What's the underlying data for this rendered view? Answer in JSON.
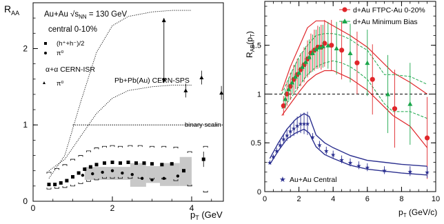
{
  "chart_data": [
    {
      "type": "scatter",
      "panel": "left",
      "ylabel": "R_AA",
      "xlabel": "p_T (GeV",
      "xlim": [
        0,
        4.8
      ],
      "ylim": [
        0,
        2.6
      ],
      "xticks": [
        0,
        2,
        4
      ],
      "yticks": [
        0,
        1,
        2
      ],
      "text": {
        "system": "Au+Au √s_NN = 130 GeV",
        "centrality": "central 0-10%",
        "hadrons": "(h⁺+h⁻)/2",
        "pi0": "π⁰",
        "isr_title": "α+α CERN-ISR",
        "isr_pi0": "π⁰",
        "sps": "Pb+Pb(Au) CERN-SPS",
        "binary": "binary scalin"
      },
      "reference_line": {
        "y": 1.0,
        "x_from": 1.0,
        "x_to": 4.8,
        "style": "dotted"
      },
      "series": [
        {
          "name": "(h⁺+h⁻)/2",
          "marker": "square",
          "x": [
            0.4,
            0.55,
            0.7,
            0.85,
            1.0,
            1.15,
            1.3,
            1.45,
            1.6,
            1.8,
            2.0,
            2.2,
            2.4,
            2.6,
            2.8,
            3.0,
            3.25,
            3.5,
            3.8,
            4.3
          ],
          "y": [
            0.22,
            0.22,
            0.24,
            0.27,
            0.32,
            0.37,
            0.42,
            0.45,
            0.48,
            0.5,
            0.51,
            0.5,
            0.51,
            0.5,
            0.5,
            0.49,
            0.48,
            0.49,
            0.4,
            0.55
          ]
        },
        {
          "name": "π⁰",
          "marker": "circle",
          "x": [
            1.0,
            1.25,
            1.5,
            1.75,
            2.0,
            2.25,
            2.5,
            2.75,
            3.0,
            3.3,
            3.65
          ],
          "y": [
            0.32,
            0.34,
            0.36,
            0.38,
            0.4,
            0.37,
            0.35,
            0.3,
            0.28,
            0.3,
            0.33
          ]
        },
        {
          "name": "α+α CERN-ISR π⁰",
          "marker": "triangle",
          "x": [
            3.85,
            4.25,
            4.75
          ],
          "y": [
            1.45,
            1.62,
            1.42
          ]
        }
      ],
      "curves": [
        {
          "role": "sps-upper",
          "style": "dotted",
          "x": [
            0.4,
            0.8,
            1.2,
            1.6,
            2.0,
            2.4,
            3.0,
            3.5,
            4.0
          ],
          "y": [
            0.3,
            0.6,
            1.3,
            1.95,
            2.3,
            2.42,
            2.48,
            2.5,
            2.5
          ]
        },
        {
          "role": "sps-lower",
          "style": "dotted",
          "x": [
            0.4,
            0.8,
            1.2,
            1.6,
            2.0,
            2.4,
            3.0,
            3.5,
            4.0
          ],
          "y": [
            0.4,
            0.55,
            0.85,
            1.15,
            1.35,
            1.45,
            1.5,
            1.52,
            1.52
          ]
        }
      ],
      "sps_arrow": {
        "x": 3.3,
        "y_top": 2.4,
        "y_bottom": 1.55
      },
      "syst_brackets": {
        "upper": {
          "x": [
            0.4,
            0.6,
            0.8,
            1.0,
            1.2,
            1.4,
            1.6,
            1.8,
            2.0,
            2.2,
            2.45,
            2.7,
            3.0,
            3.3,
            3.6,
            3.95,
            4.35
          ],
          "y": [
            0.38,
            0.43,
            0.48,
            0.55,
            0.6,
            0.66,
            0.7,
            0.72,
            0.73,
            0.72,
            0.73,
            0.73,
            0.72,
            0.72,
            0.71,
            0.65,
            0.72
          ]
        },
        "lower": {
          "x": [
            0.4,
            0.6,
            0.8,
            1.0,
            1.2,
            1.4,
            1.6,
            1.8,
            2.0,
            2.2,
            2.45,
            2.7,
            3.0,
            3.3,
            3.6,
            3.95,
            4.35
          ],
          "y": [
            0.16,
            0.17,
            0.18,
            0.2,
            0.23,
            0.26,
            0.28,
            0.3,
            0.3,
            0.3,
            0.3,
            0.3,
            0.29,
            0.29,
            0.27,
            0.2,
            0.12
          ]
        }
      },
      "gray_bands": [
        {
          "x0": 1.3,
          "x1": 2.45,
          "ylo": 0.28,
          "yhi": 0.45
        },
        {
          "x0": 2.45,
          "x1": 2.85,
          "ylo": 0.19,
          "yhi": 0.5
        },
        {
          "x0": 2.85,
          "x1": 3.2,
          "ylo": 0.24,
          "yhi": 0.46
        },
        {
          "x0": 3.2,
          "x1": 3.7,
          "ylo": 0.2,
          "yhi": 0.5
        },
        {
          "x0": 3.7,
          "x1": 4.0,
          "ylo": 0.2,
          "yhi": 0.58
        }
      ]
    },
    {
      "type": "scatter",
      "panel": "right",
      "ylabel": "R_AB(p_T)",
      "xlabel": "p_T (GeV/c)",
      "xlim": [
        0,
        10
      ],
      "ylim": [
        0,
        1.95
      ],
      "xticks": [
        0,
        2,
        4,
        6,
        8,
        10
      ],
      "yticks": [
        0,
        0.5,
        1,
        1.5
      ],
      "ytick_labels": [
        "0",
        "0.5",
        "1",
        "1.5"
      ],
      "reference_line": {
        "y": 1.0,
        "style": "dashed"
      },
      "colors": {
        "ftpc": "#e0262a",
        "minbias": "#1aa64a",
        "auau": "#2b2f8f"
      },
      "series": [
        {
          "name": "d+Au FTPC-Au 0-20%",
          "marker": "circle",
          "color": "#e0262a",
          "x": [
            1.1,
            1.3,
            1.5,
            1.7,
            1.9,
            2.1,
            2.3,
            2.5,
            2.7,
            2.9,
            3.1,
            3.3,
            3.5,
            3.9,
            4.5,
            5.4,
            6.3,
            7.6,
            9.5
          ],
          "y": [
            0.88,
            1.0,
            1.08,
            1.15,
            1.2,
            1.25,
            1.3,
            1.36,
            1.42,
            1.45,
            1.48,
            1.48,
            1.52,
            1.5,
            1.45,
            1.32,
            1.15,
            0.85,
            0.55
          ],
          "err": [
            0.1,
            0.12,
            0.14,
            0.15,
            0.16,
            0.17,
            0.18,
            0.19,
            0.2,
            0.21,
            0.22,
            0.23,
            0.24,
            0.26,
            0.3,
            0.32,
            0.36,
            0.4,
            0.42
          ]
        },
        {
          "name": "d+Au Minimum Bias",
          "marker": "triangle",
          "color": "#1aa64a",
          "x": [
            1.2,
            1.4,
            1.6,
            1.8,
            2.0,
            2.2,
            2.4,
            2.6,
            2.8,
            3.0,
            3.2,
            3.4,
            3.7,
            4.2,
            5.0,
            6.0,
            7.2,
            8.5
          ],
          "y": [
            0.95,
            1.05,
            1.12,
            1.18,
            1.22,
            1.28,
            1.33,
            1.38,
            1.42,
            1.46,
            1.48,
            1.49,
            1.5,
            1.47,
            1.42,
            1.32,
            1.0,
            0.9
          ],
          "err": [
            0.1,
            0.11,
            0.12,
            0.13,
            0.14,
            0.15,
            0.16,
            0.18,
            0.19,
            0.2,
            0.21,
            0.22,
            0.24,
            0.27,
            0.3,
            0.34,
            0.4,
            0.42
          ]
        },
        {
          "name": "Au+Au Central",
          "marker": "star",
          "color": "#2b2f8f",
          "x": [
            0.3,
            0.5,
            0.7,
            0.9,
            1.1,
            1.3,
            1.5,
            1.7,
            1.9,
            2.1,
            2.3,
            2.5,
            2.8,
            3.2,
            3.6,
            4.0,
            4.5,
            5.0,
            5.5,
            6.0,
            7.0,
            8.5,
            9.5
          ],
          "y": [
            0.3,
            0.36,
            0.42,
            0.48,
            0.54,
            0.58,
            0.62,
            0.65,
            0.68,
            0.7,
            0.7,
            0.7,
            0.56,
            0.48,
            0.42,
            0.38,
            0.33,
            0.3,
            0.27,
            0.25,
            0.22,
            0.21,
            0.2
          ],
          "err": [
            0.02,
            0.02,
            0.03,
            0.04,
            0.05,
            0.06,
            0.07,
            0.08,
            0.09,
            0.1,
            0.11,
            0.12,
            0.04,
            0.04,
            0.04,
            0.04,
            0.04,
            0.04,
            0.04,
            0.04,
            0.04,
            0.05,
            0.06
          ]
        }
      ],
      "bands": {
        "ftpc": {
          "x": [
            1.0,
            1.5,
            2.0,
            2.5,
            3.0,
            3.5,
            4.0,
            5.0,
            6.0,
            7.5,
            8.5,
            9.5
          ],
          "upper": [
            1.03,
            1.28,
            1.48,
            1.68,
            1.75,
            1.75,
            1.7,
            1.6,
            1.48,
            1.22,
            1.12,
            1.0
          ],
          "lower": [
            0.78,
            0.9,
            1.02,
            1.13,
            1.2,
            1.24,
            1.24,
            1.16,
            1.04,
            0.78,
            0.67,
            0.45
          ]
        },
        "minbias": {
          "x": [
            1.0,
            1.5,
            2.0,
            2.5,
            3.0,
            3.5,
            4.0,
            4.5,
            5.0,
            5.5,
            6.0,
            7.0,
            7.5,
            8.5,
            9.5
          ],
          "upper": [
            1.0,
            1.2,
            1.38,
            1.5,
            1.6,
            1.62,
            1.62,
            1.6,
            1.56,
            1.5,
            1.45,
            1.2,
            1.2,
            1.18,
            1.1
          ],
          "lower": [
            0.85,
            0.95,
            1.08,
            1.2,
            1.28,
            1.32,
            1.34,
            1.32,
            1.28,
            1.22,
            1.15,
            0.9,
            0.82,
            0.82,
            0.75
          ]
        },
        "auau": {
          "x": [
            0.3,
            0.8,
            1.3,
            1.8,
            2.3,
            2.6,
            3.0,
            3.5,
            4.0,
            5.0,
            6.0,
            7.0,
            8.0,
            9.5
          ],
          "upper": [
            0.34,
            0.5,
            0.64,
            0.74,
            0.8,
            0.77,
            0.58,
            0.5,
            0.45,
            0.37,
            0.32,
            0.3,
            0.28,
            0.26
          ],
          "lower": [
            0.28,
            0.42,
            0.54,
            0.6,
            0.64,
            0.6,
            0.46,
            0.38,
            0.34,
            0.27,
            0.23,
            0.21,
            0.19,
            0.17
          ]
        }
      }
    }
  ]
}
